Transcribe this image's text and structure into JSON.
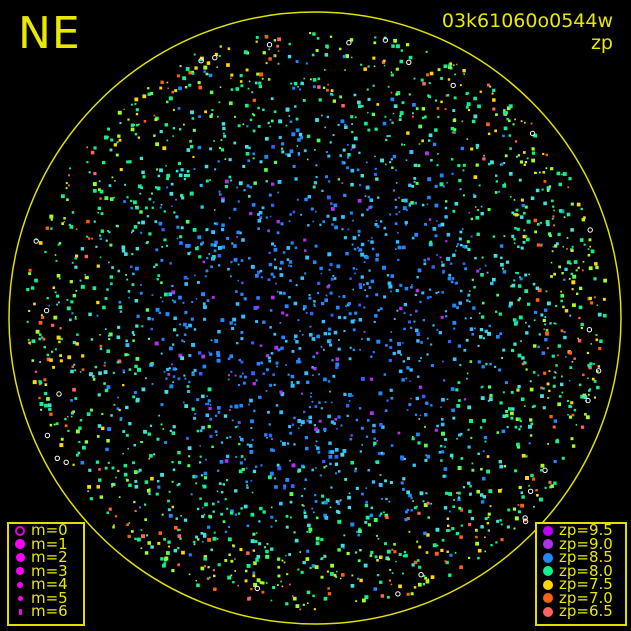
{
  "direction_label": "NE",
  "frame_id": "03k61060o0544w",
  "color_quantity": "zp",
  "colors": {
    "frame": "#e0e000",
    "background": "#000000"
  },
  "magnitude_legend": [
    {
      "label": "m=0",
      "marker": "ring"
    },
    {
      "label": "m=1",
      "marker": "dot"
    },
    {
      "label": "m=2",
      "marker": "dot"
    },
    {
      "label": "m=3",
      "marker": "dot"
    },
    {
      "label": "m=4",
      "marker": "dot"
    },
    {
      "label": "m=5",
      "marker": "dot"
    },
    {
      "label": "m=6",
      "marker": "dot"
    }
  ],
  "zp_legend": [
    {
      "label": "zp=9.5",
      "color": "#c000ff"
    },
    {
      "label": "zp=9.0",
      "color": "#b030f0"
    },
    {
      "label": "zp=8.5",
      "color": "#2088ff"
    },
    {
      "label": "zp=8.0",
      "color": "#10f090"
    },
    {
      "label": "zp=7.5",
      "color": "#ffd800"
    },
    {
      "label": "zp=7.0",
      "color": "#ff6010"
    },
    {
      "label": "zp=6.5",
      "color": "#ff6060"
    }
  ]
}
